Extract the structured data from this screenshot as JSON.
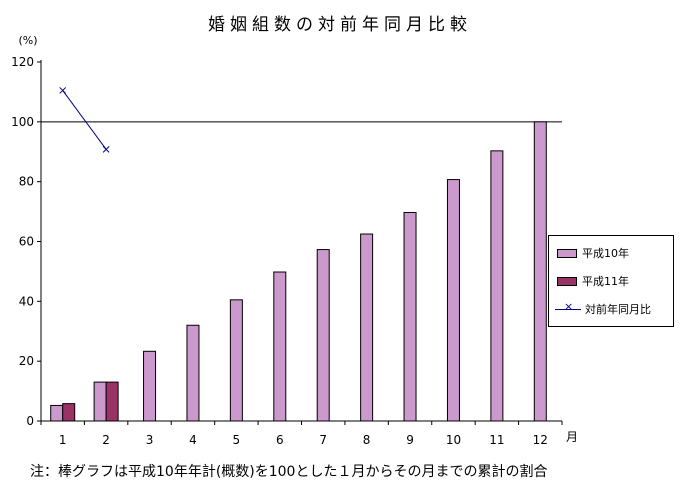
{
  "title": "婚姻組数の対前年同月比較",
  "note": "注：棒グラフは平成10年年計(概数)を100とした１月からその月までの累計の割合",
  "y_unit": "(%)",
  "x_unit": "月",
  "legend": {
    "h10": "平成10年",
    "h11": "平成11年",
    "ratio": "対前年同月比",
    "marker": "×"
  },
  "colors": {
    "h10": "#cc99cc",
    "h11": "#993366",
    "ratio": "#000080"
  },
  "chart_data": {
    "type": "bar",
    "categories": [
      "1",
      "2",
      "3",
      "4",
      "5",
      "6",
      "7",
      "8",
      "9",
      "10",
      "11",
      "12"
    ],
    "series": [
      {
        "name": "平成10年",
        "values": [
          5.2,
          13.0,
          23.3,
          32.0,
          40.5,
          49.8,
          57.3,
          62.5,
          69.7,
          80.7,
          90.3,
          100
        ]
      },
      {
        "name": "平成11年",
        "values": [
          5.8,
          13.0,
          null,
          null,
          null,
          null,
          null,
          null,
          null,
          null,
          null,
          null
        ]
      },
      {
        "name": "対前年同月比",
        "type": "line",
        "values": [
          110.5,
          90.8,
          null,
          null,
          null,
          null,
          null,
          null,
          null,
          null,
          null,
          null
        ]
      }
    ],
    "ylim": [
      0,
      120
    ],
    "yticks": [
      0,
      20,
      40,
      60,
      80,
      100,
      120
    ],
    "reference_line": 100,
    "legend_position": "right"
  }
}
